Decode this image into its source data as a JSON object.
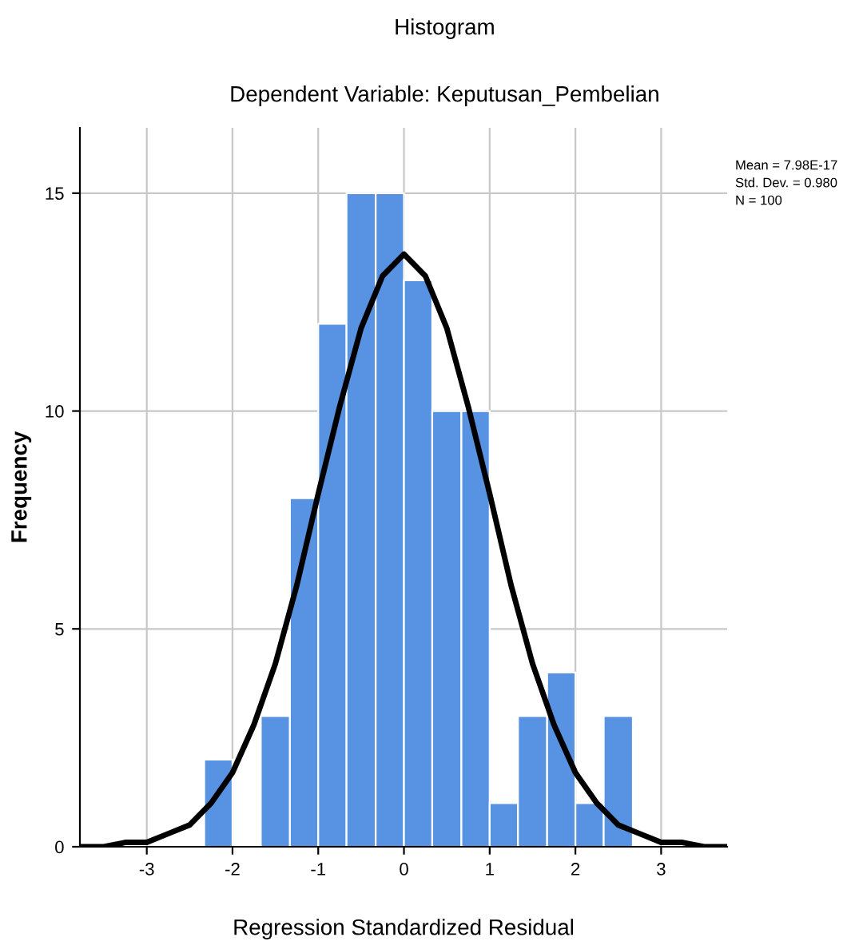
{
  "chart_data": {
    "type": "histogram",
    "title": "Histogram",
    "subtitle": "Dependent Variable: Keputusan_Pembelian",
    "xlabel": "Regression Standardized Residual",
    "ylabel": "Frequency",
    "series": [
      {
        "color": "#5893e3",
        "bins": [
          -2.33,
          -2.0,
          -1.67,
          -1.33,
          -1.0,
          -0.67,
          -0.33,
          0.0,
          0.33,
          0.67,
          1.0,
          1.33,
          1.67,
          2.0,
          2.33,
          2.67
        ],
        "values": [
          2,
          0,
          3,
          8,
          12,
          15,
          15,
          13,
          10,
          10,
          1,
          3,
          4,
          1,
          3
        ]
      },
      {
        "type": "line",
        "color": "#000000",
        "x": [
          -3.75,
          -3.5,
          -3.25,
          -3.0,
          -2.75,
          -2.5,
          -2.25,
          -2.0,
          -1.75,
          -1.5,
          -1.25,
          -1.0,
          -0.75,
          -0.5,
          -0.25,
          0.0,
          0.25,
          0.5,
          0.75,
          1.0,
          1.25,
          1.5,
          1.75,
          2.0,
          2.25,
          2.5,
          2.75,
          3.0,
          3.25,
          3.5,
          3.75
        ],
        "values": [
          0.0,
          0.0,
          0.1,
          0.1,
          0.3,
          0.5,
          1.0,
          1.7,
          2.8,
          4.2,
          6.0,
          8.1,
          10.1,
          11.9,
          13.1,
          13.6,
          13.1,
          11.9,
          10.1,
          8.1,
          6.0,
          4.2,
          2.8,
          1.7,
          1.0,
          0.5,
          0.3,
          0.1,
          0.1,
          0.0,
          0.0
        ]
      }
    ],
    "xlim": [
      -3.78,
      3.77
    ],
    "ylim": [
      0,
      16.5
    ],
    "xticks": [
      -3,
      -2,
      -1,
      0,
      1,
      2,
      3
    ],
    "yticks": [
      0,
      5,
      10,
      15
    ],
    "grid": true,
    "legend": false,
    "annotations": [
      "Mean = 7.98E-17",
      "Std. Dev. = 0.980",
      "N = 100"
    ]
  }
}
